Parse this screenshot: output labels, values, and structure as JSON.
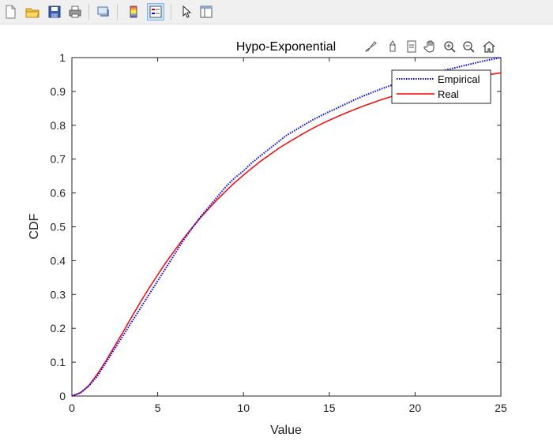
{
  "toolbar": {
    "buttons": [
      {
        "name": "new-figure-icon"
      },
      {
        "name": "open-file-icon"
      },
      {
        "name": "save-figure-icon"
      },
      {
        "name": "print-figure-icon"
      },
      {
        "name": "link-plot-icon"
      },
      {
        "name": "insert-colorbar-icon"
      },
      {
        "name": "insert-legend-icon"
      },
      {
        "name": "edit-plot-cursor-icon"
      },
      {
        "name": "property-inspector-icon"
      }
    ]
  },
  "axes_toolbar": {
    "buttons": [
      {
        "name": "brush-icon"
      },
      {
        "name": "data-tips-icon"
      },
      {
        "name": "export-icon"
      },
      {
        "name": "pan-hand-icon"
      },
      {
        "name": "zoom-in-icon"
      },
      {
        "name": "zoom-out-icon"
      },
      {
        "name": "home-icon"
      }
    ]
  },
  "chart_data": {
    "type": "line",
    "title": "Hypo-Exponential",
    "xlabel": "Value",
    "ylabel": "CDF",
    "xlim": [
      0,
      25
    ],
    "ylim": [
      0,
      1
    ],
    "xticks": [
      "0",
      "5",
      "10",
      "15",
      "20",
      "25"
    ],
    "yticks": [
      "0",
      "0.1",
      "0.2",
      "0.3",
      "0.4",
      "0.5",
      "0.6",
      "0.7",
      "0.8",
      "0.9",
      "1"
    ],
    "grid": false,
    "legend_position": "top-right",
    "series": [
      {
        "name": "Empirical",
        "color": "#0000ff",
        "style": "dotted",
        "x": [
          0,
          0.5,
          1,
          1.5,
          2,
          2.5,
          3,
          3.5,
          4,
          4.5,
          5,
          5.5,
          6,
          6.5,
          7,
          7.5,
          8,
          8.5,
          9,
          9.5,
          10,
          10.5,
          11,
          11.5,
          12,
          12.5,
          13,
          13.5,
          14,
          14.5,
          15,
          15.5,
          16,
          16.5,
          17,
          17.5,
          18,
          18.5,
          19,
          19.5,
          20,
          20.5,
          21,
          21.5,
          22,
          22.5,
          23,
          23.5,
          24,
          24.5,
          25
        ],
        "y": [
          0,
          0.01,
          0.03,
          0.06,
          0.1,
          0.14,
          0.18,
          0.22,
          0.26,
          0.3,
          0.34,
          0.38,
          0.42,
          0.46,
          0.495,
          0.53,
          0.56,
          0.59,
          0.62,
          0.645,
          0.665,
          0.69,
          0.71,
          0.73,
          0.75,
          0.77,
          0.785,
          0.8,
          0.815,
          0.828,
          0.84,
          0.852,
          0.864,
          0.876,
          0.887,
          0.897,
          0.907,
          0.916,
          0.925,
          0.933,
          0.94,
          0.947,
          0.954,
          0.96,
          0.966,
          0.972,
          0.978,
          0.984,
          0.99,
          0.995,
          1.0
        ]
      },
      {
        "name": "Real",
        "color": "#ff0000",
        "style": "solid",
        "x": [
          0,
          0.5,
          1,
          1.5,
          2,
          2.5,
          3,
          3.5,
          4,
          4.5,
          5,
          5.5,
          6,
          6.5,
          7,
          7.5,
          8,
          8.5,
          9,
          9.5,
          10,
          10.5,
          11,
          11.5,
          12,
          12.5,
          13,
          13.5,
          14,
          14.5,
          15,
          15.5,
          16,
          16.5,
          17,
          17.5,
          18,
          18.5,
          19,
          19.5,
          20,
          20.5,
          21,
          21.5,
          22,
          22.5,
          23,
          23.5,
          24,
          24.5,
          25
        ],
        "y": [
          0,
          0.009,
          0.032,
          0.066,
          0.105,
          0.148,
          0.191,
          0.235,
          0.278,
          0.319,
          0.358,
          0.396,
          0.431,
          0.465,
          0.497,
          0.527,
          0.555,
          0.582,
          0.607,
          0.631,
          0.653,
          0.674,
          0.694,
          0.712,
          0.73,
          0.746,
          0.761,
          0.776,
          0.79,
          0.803,
          0.815,
          0.826,
          0.837,
          0.847,
          0.857,
          0.866,
          0.875,
          0.883,
          0.891,
          0.898,
          0.905,
          0.911,
          0.917,
          0.923,
          0.928,
          0.933,
          0.938,
          0.943,
          0.947,
          0.951,
          0.955
        ]
      }
    ]
  }
}
